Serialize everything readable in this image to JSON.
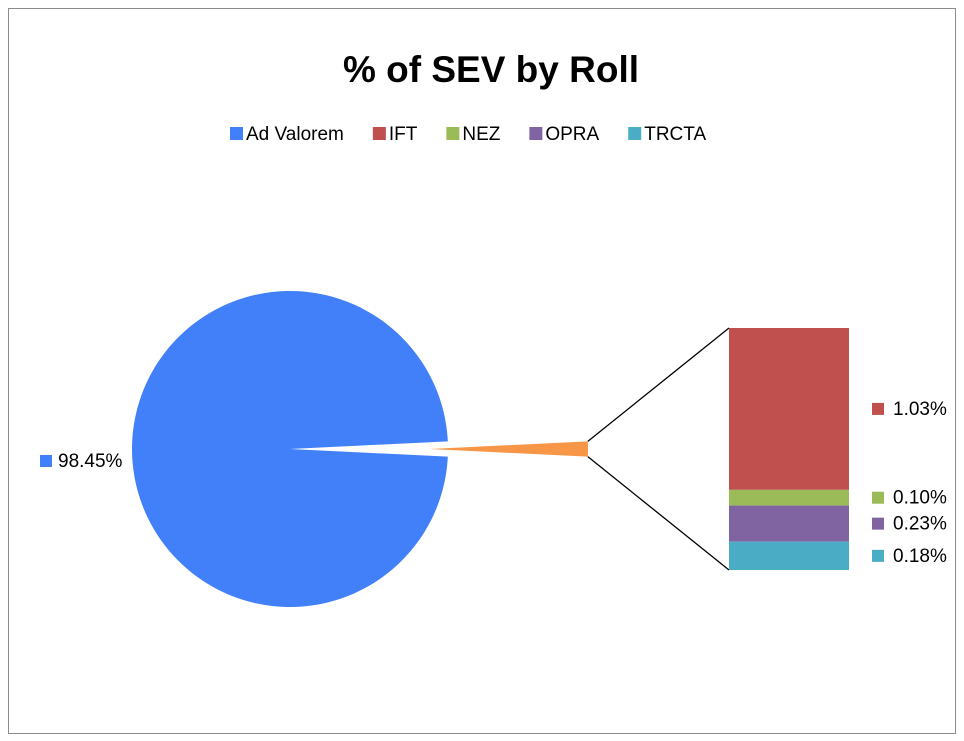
{
  "chart_data": {
    "type": "pie",
    "title": "% of SEV by Roll",
    "categories": [
      "Ad Valorem",
      "IFT",
      "NEZ",
      "OPRA",
      "TRCTA"
    ],
    "values": [
      98.45,
      1.03,
      0.1,
      0.23,
      0.18
    ],
    "value_labels": [
      "98.45%",
      "1.03%",
      "0.10%",
      "0.23%",
      "0.18%"
    ],
    "colors": [
      "#4280fa",
      "#c0504d",
      "#9bbb59",
      "#8064a2",
      "#4bacc6"
    ],
    "other_color": "#f79646",
    "legend": "top"
  }
}
